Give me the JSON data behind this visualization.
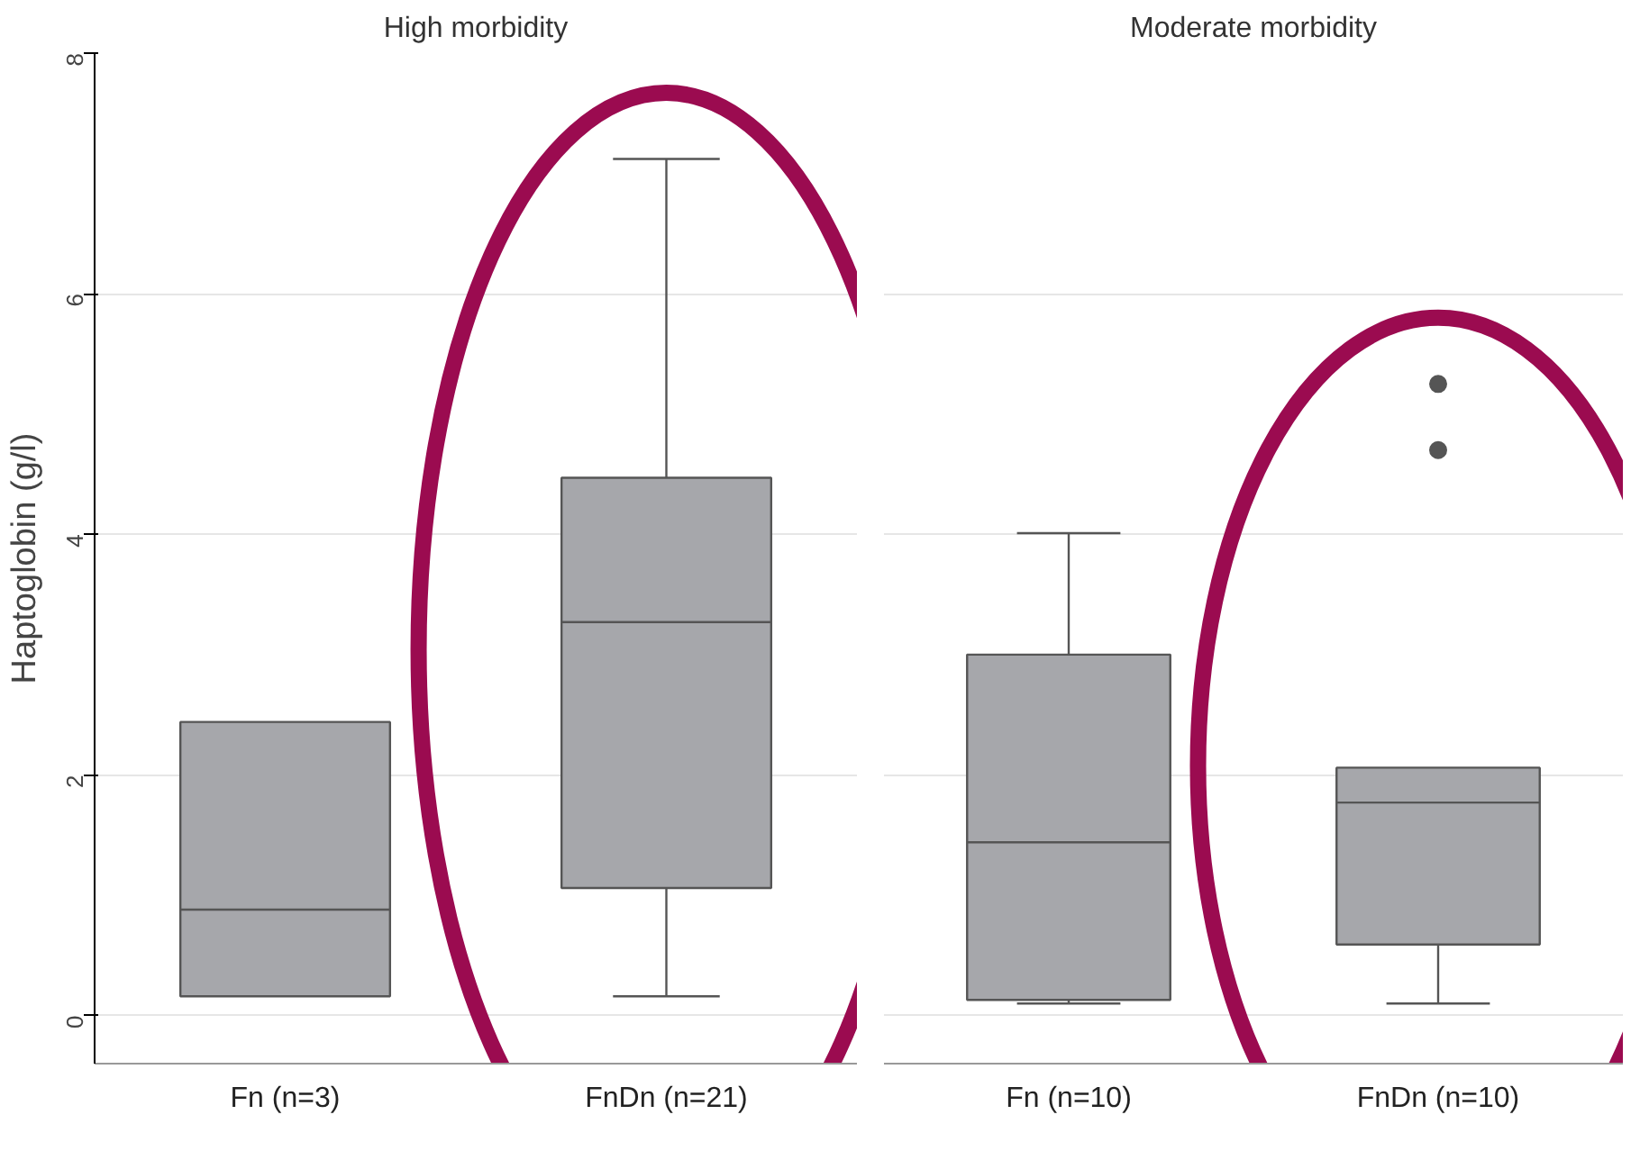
{
  "chart_data": [
    {
      "type": "box",
      "title": "High morbidity",
      "ylabel": "Haptoglobin (g/l)",
      "categories": [
        "Fn (n=3)",
        "FnDn (n=21)"
      ],
      "ylim": [
        -0.4,
        8
      ],
      "yticks": [
        0,
        2,
        4,
        6,
        8
      ],
      "grid": "y",
      "color": "#a6a7ab",
      "boxes": [
        {
          "low": 0.16,
          "q1": 0.16,
          "median": 0.88,
          "q3": 2.44,
          "high": 2.44
        },
        {
          "low": 0.16,
          "q1": 1.06,
          "median": 3.27,
          "q3": 4.47,
          "high": 7.12
        }
      ]
    },
    {
      "type": "box",
      "title": "Moderate morbidity",
      "categories": [
        "Fn (n=10)",
        "FnDn (n=10)"
      ],
      "ylim": [
        -0.4,
        8
      ],
      "tick_labels": "x",
      "grid": "y",
      "color": "#a6a7ab",
      "boxes": [
        {
          "low": 0.1,
          "q1": 0.13,
          "median": 1.44,
          "q3": 3.0,
          "high": 4.01
        },
        {
          "low": 0.1,
          "q1": 0.59,
          "median": 1.77,
          "q3": 2.06,
          "high": 2.06,
          "outliers": [
            5.25,
            4.7
          ]
        }
      ]
    }
  ]
}
